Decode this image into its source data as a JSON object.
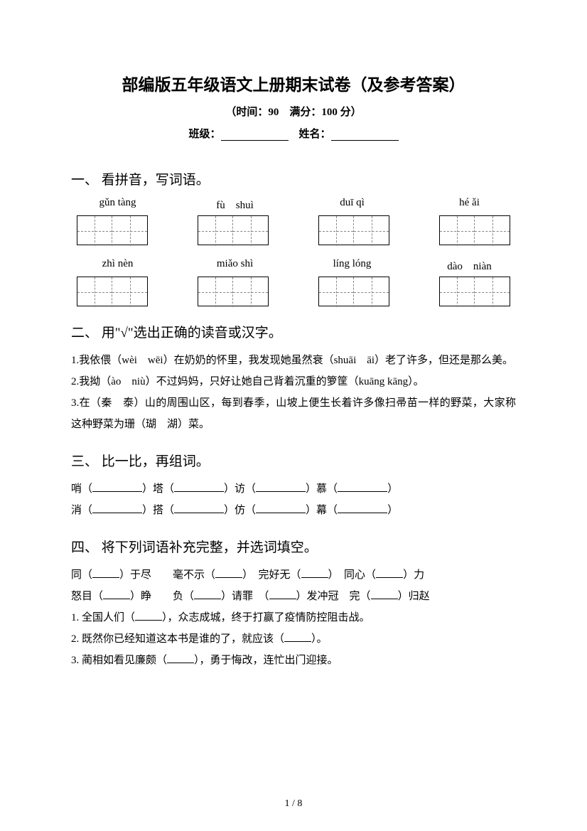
{
  "header": {
    "title": "部编版五年级语文上册期末试卷（及参考答案）",
    "subtitle": "（时间：90　满分：100 分）",
    "class_label": "班级：",
    "name_label": "姓名："
  },
  "section1": {
    "title": "一、 看拼音，写词语。",
    "row1": [
      "gǔn tàng",
      "fù　shuì",
      "duī qì",
      "hé ǎi"
    ],
    "row2": [
      "zhì nèn",
      "miǎo shì",
      "líng lóng",
      "dào　niàn"
    ]
  },
  "section2": {
    "title": "二、 用\"√\"选出正确的读音或汉字。",
    "item1": "1.我依偎（wèi　wēi）在奶奶的怀里，我发现她虽然衰（shuāi　āi）老了许多，但还是那么美。",
    "item2": "2.我拗（ào　niù）不过妈妈，只好让她自己背着沉重的箩筐（kuāng kāng）。",
    "item3": "3.在（秦　泰）山的周围山区，每到春季，山坡上便生长着许多像扫帚苗一样的野菜，大家称这种野菜为珊（瑚　湖）菜。"
  },
  "section3": {
    "title": "三、 比一比，再组词。",
    "line1_a": "哨（",
    "line1_b": "）塔（",
    "line1_c": "）访（",
    "line1_d": "）慕（",
    "line1_e": "）",
    "line2_a": "消（",
    "line2_b": "）搭（",
    "line2_c": "）仿（",
    "line2_d": "）幕（",
    "line2_e": "）"
  },
  "section4": {
    "title": "四、 将下列词语补充完整，并选词填空。",
    "line1_a": "同（",
    "line1_b": "）于尽　　毫不示（",
    "line1_c": "）　完好无（",
    "line1_d": "）　同心（",
    "line1_e": "）力",
    "line2_a": "怒目（",
    "line2_b": "）睁　　负（",
    "line2_c": "）请罪　（",
    "line2_d": "）发冲冠　完（",
    "line2_e": "）归赵",
    "item1_a": "1. 全国人们（",
    "item1_b": "），众志成城，终于打赢了疫情防控阻击战。",
    "item2_a": "2. 既然你已经知道这本书是谁的了，就应该（",
    "item2_b": "）。",
    "item3_a": "3. 蔺相如看见廉颇（",
    "item3_b": "），勇于悔改，连忙出门迎接。"
  },
  "footer": {
    "page": "1 / 8"
  },
  "style": {
    "bg_color": "#ffffff",
    "text_color": "#000000",
    "title_fontsize": 23,
    "section_fontsize": 19,
    "body_fontsize": 15
  }
}
